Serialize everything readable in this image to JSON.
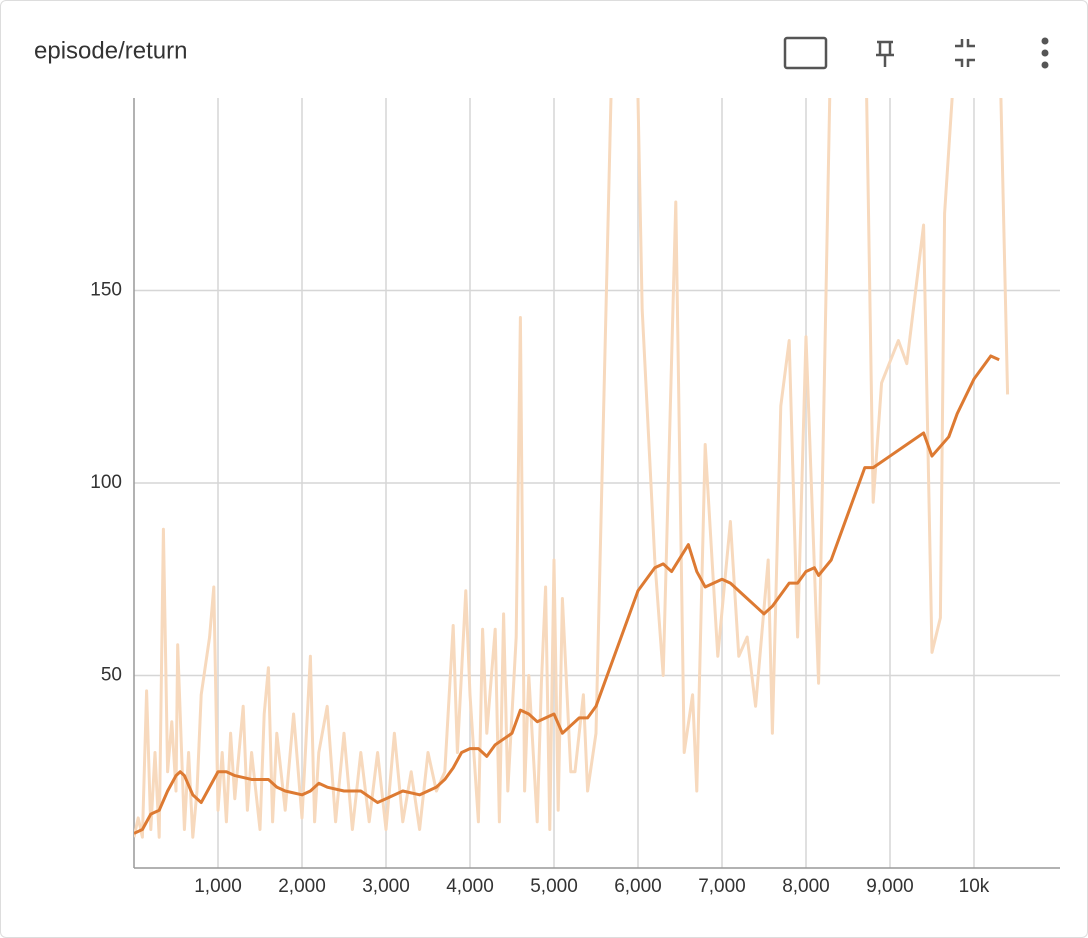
{
  "chart_data": {
    "type": "line",
    "title": "episode/return",
    "xlim": [
      0,
      11024
    ],
    "ylim": [
      0,
      200
    ],
    "xticks": [
      {
        "value": 1000,
        "label": "1,000"
      },
      {
        "value": 2000,
        "label": "2,000"
      },
      {
        "value": 3000,
        "label": "3,000"
      },
      {
        "value": 4000,
        "label": "4,000"
      },
      {
        "value": 5000,
        "label": "5,000"
      },
      {
        "value": 6000,
        "label": "6,000"
      },
      {
        "value": 7000,
        "label": "7,000"
      },
      {
        "value": 8000,
        "label": "8,000"
      },
      {
        "value": 9000,
        "label": "9,000"
      },
      {
        "value": 10000,
        "label": "10k"
      }
    ],
    "yticks": [
      50,
      100,
      150
    ],
    "grid": true,
    "series": [
      {
        "color": "#f7d9bd",
        "x": [
          0,
          50,
          100,
          150,
          200,
          250,
          300,
          350,
          400,
          450,
          500,
          520,
          600,
          650,
          700,
          750,
          800,
          900,
          950,
          1000,
          1050,
          1100,
          1150,
          1200,
          1300,
          1350,
          1400,
          1500,
          1550,
          1600,
          1650,
          1700,
          1800,
          1900,
          2000,
          2100,
          2150,
          2200,
          2300,
          2400,
          2500,
          2600,
          2700,
          2800,
          2900,
          3000,
          3100,
          3200,
          3300,
          3400,
          3500,
          3600,
          3700,
          3800,
          3850,
          3950,
          4000,
          4100,
          4150,
          4200,
          4300,
          4350,
          4400,
          4450,
          4500,
          4550,
          4600,
          4650,
          4700,
          4800,
          4850,
          4900,
          4950,
          5000,
          5050,
          5100,
          5200,
          5250,
          5350,
          5400,
          5500,
          5700,
          5900,
          6000,
          6050,
          6200,
          6300,
          6450,
          6550,
          6650,
          6700,
          6800,
          6950,
          7100,
          7200,
          7300,
          7400,
          7550,
          7600,
          7700,
          7800,
          7900,
          8000,
          8150,
          8300,
          8700,
          8800,
          8900,
          9100,
          9200,
          9400,
          9500,
          9600,
          9650,
          9800,
          10300,
          10400
        ],
        "values": [
          8,
          13,
          8,
          46,
          10,
          30,
          8,
          88,
          25,
          38,
          20,
          58,
          10,
          30,
          8,
          20,
          45,
          60,
          73,
          15,
          30,
          12,
          35,
          18,
          42,
          15,
          30,
          10,
          40,
          52,
          12,
          35,
          15,
          40,
          13,
          55,
          12,
          30,
          42,
          12,
          35,
          10,
          30,
          12,
          30,
          10,
          35,
          12,
          25,
          10,
          30,
          20,
          25,
          63,
          30,
          72,
          45,
          12,
          62,
          35,
          62,
          12,
          66,
          20,
          40,
          60,
          143,
          20,
          50,
          12,
          48,
          73,
          10,
          80,
          15,
          70,
          25,
          25,
          45,
          20,
          35,
          220,
          230,
          200,
          145,
          80,
          50,
          173,
          30,
          45,
          20,
          110,
          55,
          90,
          55,
          60,
          42,
          80,
          35,
          120,
          137,
          60,
          138,
          48,
          220,
          230,
          95,
          126,
          137,
          131,
          167,
          56,
          65,
          170,
          220,
          220,
          123
        ]
      },
      {
        "color": "#dd7a32",
        "x": [
          0,
          100,
          200,
          300,
          400,
          500,
          550,
          600,
          700,
          800,
          900,
          1000,
          1100,
          1200,
          1400,
          1600,
          1700,
          1800,
          2000,
          2100,
          2200,
          2300,
          2500,
          2700,
          2900,
          3000,
          3200,
          3400,
          3600,
          3700,
          3800,
          3900,
          4000,
          4100,
          4200,
          4300,
          4500,
          4600,
          4700,
          4800,
          4900,
          5000,
          5100,
          5200,
          5300,
          5400,
          5500,
          5600,
          5800,
          6000,
          6200,
          6300,
          6400,
          6600,
          6700,
          6800,
          6900,
          7000,
          7100,
          7300,
          7400,
          7500,
          7600,
          7800,
          7900,
          8000,
          8100,
          8150,
          8300,
          8500,
          8700,
          8800,
          9000,
          9200,
          9400,
          9500,
          9700,
          9800,
          10000,
          10200,
          10300
        ],
        "values": [
          9,
          10,
          14,
          15,
          20,
          24,
          25,
          24,
          19,
          17,
          21,
          25,
          25,
          24,
          23,
          23,
          21,
          20,
          19,
          20,
          22,
          21,
          20,
          20,
          17,
          18,
          20,
          19,
          21,
          23,
          26,
          30,
          31,
          31,
          29,
          32,
          35,
          41,
          40,
          38,
          39,
          40,
          35,
          37,
          39,
          39,
          42,
          48,
          60,
          72,
          78,
          79,
          77,
          84,
          77,
          73,
          74,
          75,
          74,
          70,
          68,
          66,
          68,
          74,
          74,
          77,
          78,
          76,
          80,
          92,
          104,
          104,
          107,
          110,
          113,
          107,
          112,
          118,
          127,
          133,
          132
        ]
      }
    ]
  }
}
